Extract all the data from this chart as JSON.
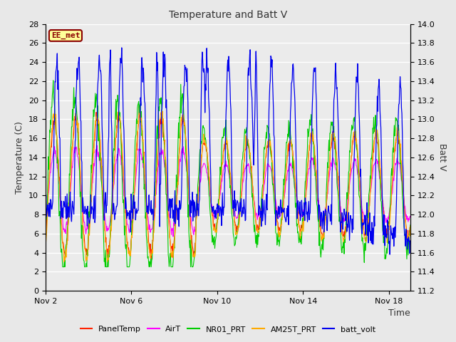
{
  "title": "Temperature and Batt V",
  "xlabel": "Time",
  "ylabel_left": "Temperature (C)",
  "ylabel_right": "Batt V",
  "annotation_text": "EE_met",
  "annotation_color": "#8B0000",
  "annotation_bg": "#FFFF99",
  "ylim_left": [
    0,
    28
  ],
  "ylim_right": [
    11.2,
    14.0
  ],
  "yticks_left": [
    0,
    2,
    4,
    6,
    8,
    10,
    12,
    14,
    16,
    18,
    20,
    22,
    24,
    26,
    28
  ],
  "yticks_right": [
    11.2,
    11.4,
    11.6,
    11.8,
    12.0,
    12.2,
    12.4,
    12.6,
    12.8,
    13.0,
    13.2,
    13.4,
    13.6,
    13.8,
    14.0
  ],
  "xtick_positions": [
    0,
    4,
    8,
    12,
    16
  ],
  "xtick_labels": [
    "Nov 2",
    "Nov 6",
    "Nov 10",
    "Nov 14",
    "Nov 18"
  ],
  "xlim": [
    0,
    17
  ],
  "legend_labels": [
    "PanelTemp",
    "AirT",
    "NR01_PRT",
    "AM25T_PRT",
    "batt_volt"
  ],
  "legend_colors": [
    "#FF2200",
    "#FF00FF",
    "#00CC00",
    "#FFAA00",
    "#0000EE"
  ],
  "bg_color": "#E8E8E8",
  "plot_bg_color": "#EBEBEB",
  "grid_color": "#FFFFFF",
  "seed": 42
}
